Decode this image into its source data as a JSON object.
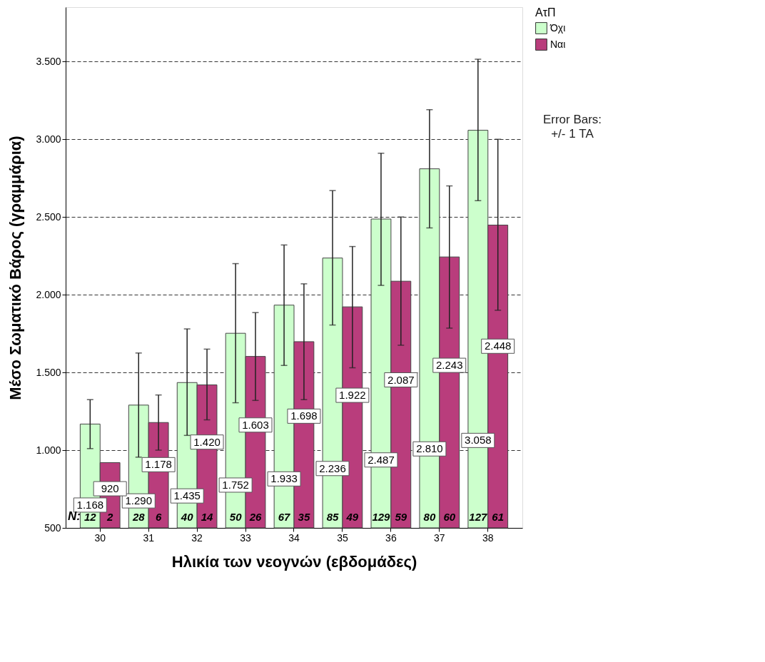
{
  "chart_data": {
    "type": "bar",
    "xlabel": "Ηλικία των νεογνών (εβδομάδες)",
    "ylabel": "Μέσο Σωματικό Βάρος (γραμμάρια)",
    "legend_title": "ΑτΠ",
    "legend": "right",
    "grid": "y",
    "categories": [
      "30",
      "31",
      "32",
      "33",
      "34",
      "35",
      "36",
      "37",
      "38"
    ],
    "ylim": [
      500,
      3850
    ],
    "yticks": [
      500,
      {
        "value": 1000,
        "label": "1.000"
      },
      {
        "value": 1500,
        "label": "1.500"
      },
      {
        "value": 2000,
        "label": "2.000"
      },
      {
        "value": 2500,
        "label": "2.500"
      },
      {
        "value": 3000,
        "label": "3.000"
      },
      {
        "value": 3500,
        "label": "3.500"
      }
    ],
    "series": [
      {
        "name": "Όχι",
        "color": "#ccffcc",
        "values": [
          1168,
          1290,
          1435,
          1752,
          1933,
          2236,
          2487,
          2810,
          3058
        ],
        "value_labels": [
          "1.168",
          "1.290",
          "1.435",
          "1.752",
          "1.933",
          "2.236",
          "2.487",
          "2.810",
          "3.058"
        ],
        "errors": [
          [
            1010,
            1325
          ],
          [
            955,
            1625
          ],
          [
            1095,
            1780
          ],
          [
            1305,
            2200
          ],
          [
            1545,
            2320
          ],
          [
            1805,
            2670
          ],
          [
            2060,
            2910
          ],
          [
            2430,
            3190
          ],
          [
            2605,
            3515
          ]
        ]
      },
      {
        "name": "Ναι",
        "color": "#b93d7c",
        "values": [
          920,
          1178,
          1420,
          1603,
          1698,
          1922,
          2087,
          2243,
          2448
        ],
        "value_labels": [
          "920",
          "1.178",
          "1.420",
          "1.603",
          "1.698",
          "1.922",
          "2.087",
          "2.243",
          "2.448"
        ],
        "errors": [
          null,
          [
            1000,
            1355
          ],
          [
            1195,
            1650
          ],
          [
            1320,
            1885
          ],
          [
            1325,
            2070
          ],
          [
            1530,
            2310
          ],
          [
            1675,
            2500
          ],
          [
            1785,
            2700
          ],
          [
            1900,
            3000
          ]
        ]
      }
    ],
    "annotations": [
      "Error Bars:\n+/- 1 ΤΑ",
      "N:",
      {
        "text": "12",
        "x": "30",
        "y": 570
      },
      {
        "text": "2",
        "x": "30",
        "y": 570
      },
      {
        "text": "28",
        "x": "31",
        "y": 570
      },
      {
        "text": "6",
        "x": "31",
        "y": 570
      },
      {
        "text": "40",
        "x": "32",
        "y": 570
      },
      {
        "text": "14",
        "x": "32",
        "y": 570
      },
      {
        "text": "50",
        "x": "33",
        "y": 570
      },
      {
        "text": "26",
        "x": "33",
        "y": 570
      },
      {
        "text": "67",
        "x": "34",
        "y": 570
      },
      {
        "text": "35",
        "x": "34",
        "y": 570
      },
      {
        "text": "85",
        "x": "35",
        "y": 570
      },
      {
        "text": "49",
        "x": "35",
        "y": 570
      },
      {
        "text": "129",
        "x": "36",
        "y": 570
      },
      {
        "text": "59",
        "x": "36",
        "y": 570
      },
      {
        "text": "80",
        "x": "37",
        "y": 570
      },
      {
        "text": "60",
        "x": "37",
        "y": 570
      },
      {
        "text": "127",
        "x": "38",
        "y": 570
      },
      {
        "text": "61",
        "x": "38",
        "y": 570
      }
    ]
  }
}
